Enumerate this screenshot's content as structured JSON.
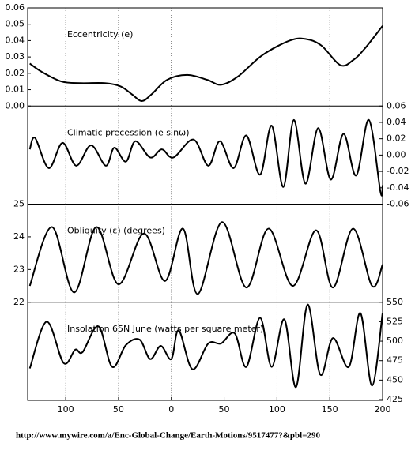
{
  "chart_data": [
    {
      "type": "line",
      "title": "Eccentricity (e)",
      "yaxis_side": "left",
      "color": "#000000",
      "x": [
        -134,
        -123,
        -104,
        -86,
        -63,
        -48,
        -37,
        -28,
        -19,
        -4,
        15,
        34,
        47,
        63,
        86,
        112,
        127,
        142,
        160,
        172,
        183,
        200
      ],
      "values": [
        0.026,
        0.021,
        0.015,
        0.014,
        0.014,
        0.012,
        0.007,
        0.003,
        0.007,
        0.016,
        0.019,
        0.016,
        0.013,
        0.018,
        0.031,
        0.04,
        0.041,
        0.037,
        0.025,
        0.028,
        0.035,
        0.049
      ],
      "ylim": [
        0,
        0.06
      ],
      "yticks": [
        {
          "value": 0,
          "label": "0.00"
        },
        0.01,
        0.02,
        0.03,
        0.04,
        0.05,
        0.06
      ]
    },
    {
      "type": "line",
      "title": "Climatic precession (e sinω)",
      "yaxis_side": "right",
      "color": "#000000",
      "x": [
        -134,
        -129,
        -116,
        -103,
        -90,
        -76,
        -62,
        -54,
        -43,
        -34,
        -20,
        -9,
        2,
        21,
        35,
        46,
        59,
        71,
        84,
        95,
        106,
        116,
        127,
        139,
        151,
        163,
        175,
        187,
        198,
        200
      ],
      "values": [
        0.007,
        0.021,
        -0.016,
        0.015,
        -0.013,
        0.012,
        -0.013,
        0.009,
        -0.008,
        0.017,
        -0.003,
        0.007,
        -0.003,
        0.019,
        -0.013,
        0.017,
        -0.016,
        0.024,
        -0.024,
        0.036,
        -0.039,
        0.043,
        -0.035,
        0.033,
        -0.03,
        0.026,
        -0.025,
        0.043,
        -0.045,
        -0.037
      ],
      "ylim": [
        -0.06,
        0.06
      ],
      "yticks": [
        -0.06,
        -0.04,
        -0.02,
        {
          "value": 0,
          "label": "0.00"
        },
        0.02,
        0.04,
        0.06
      ]
    },
    {
      "type": "line",
      "title": "Obliquity (ε) (degrees)",
      "yaxis_side": "left",
      "color": "#000000",
      "x": [
        -134,
        -113,
        -92,
        -71,
        -50,
        -26,
        -6,
        11,
        25,
        48,
        71,
        92,
        115,
        137,
        153,
        172,
        190,
        200
      ],
      "values": [
        22.5,
        24.3,
        22.3,
        24.3,
        22.55,
        24.1,
        22.65,
        24.25,
        22.25,
        24.45,
        22.45,
        24.25,
        22.5,
        24.2,
        22.45,
        24.25,
        22.5,
        23.15
      ],
      "ylim": [
        22,
        25
      ],
      "yticks": [
        22,
        23,
        24,
        25
      ]
    },
    {
      "type": "line",
      "title": "Insolation 65N June (watts per square meter)",
      "yaxis_side": "right",
      "color": "#000000",
      "x": [
        -134,
        -118,
        -102,
        -91,
        -84,
        -69,
        -56,
        -43,
        -30,
        -20,
        -10,
        0,
        7,
        20,
        35,
        47,
        60,
        71,
        84,
        95,
        107,
        118,
        129,
        141,
        153,
        168,
        179,
        190,
        200
      ],
      "values": [
        465,
        525,
        472,
        489,
        486,
        519,
        467,
        495,
        502,
        477,
        494,
        477,
        514,
        464,
        497,
        497,
        510,
        467,
        530,
        467,
        528,
        441,
        547,
        457,
        504,
        467,
        536,
        443,
        536
      ],
      "ylim": [
        424,
        550
      ],
      "yticks": [
        425,
        450,
        475,
        500,
        525,
        550
      ],
      "xlim": [
        -136,
        200
      ],
      "xticks": [
        {
          "value": -100,
          "label": "100"
        },
        {
          "value": -50,
          "label": "50"
        },
        0,
        50,
        100,
        150,
        200
      ],
      "grid": true
    }
  ],
  "caption": "http://www.mywire.com/a/Enc-Global-Change/Earth-Motions/9517477?&pbl=290"
}
